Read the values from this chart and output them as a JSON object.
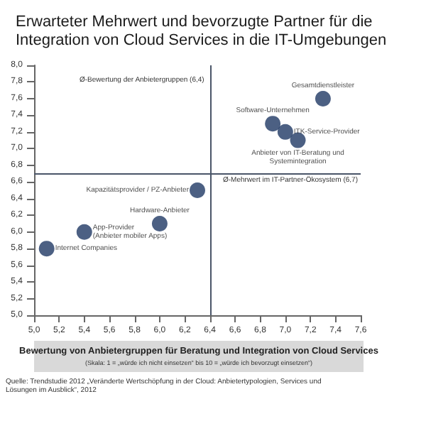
{
  "chart_data": {
    "type": "scatter",
    "title": "Erwarteter Mehrwert und bevorzugte Partner für die Integration von Cloud Services in die IT-Umgebungen",
    "xlabel": "Bewertung von Anbietergruppen für Beratung und Integration von Cloud Services",
    "subtitle": "(Skala: 1 = „würde ich nicht einsetzen“ bis 10 = „würde ich bevorzugt einsetzen“)",
    "x": [
      7.3,
      6.9,
      7.0,
      7.1,
      6.3,
      6.0,
      5.4,
      5.1
    ],
    "values": [
      7.6,
      7.3,
      7.2,
      7.1,
      6.5,
      6.1,
      6.0,
      5.8
    ],
    "color": "#1f3864",
    "marker": "circle",
    "xlim": [
      5.0,
      7.6
    ],
    "ylim": [
      5.0,
      8.0
    ],
    "xticks": [
      {
        "value": 5.0,
        "label": "5,0"
      },
      {
        "value": 5.2,
        "label": "5,2"
      },
      {
        "value": 5.4,
        "label": "5,4"
      },
      {
        "value": 5.6,
        "label": "5,6"
      },
      {
        "value": 5.8,
        "label": "5,8"
      },
      {
        "value": 6.0,
        "label": "6,0"
      },
      {
        "value": 6.2,
        "label": "6,2"
      },
      {
        "value": 6.4,
        "label": "6,4"
      },
      {
        "value": 6.6,
        "label": "6,6"
      },
      {
        "value": 6.8,
        "label": "6,8"
      },
      {
        "value": 7.0,
        "label": "7,0"
      },
      {
        "value": 7.2,
        "label": "7,2"
      },
      {
        "value": 7.4,
        "label": "7,4"
      },
      {
        "value": 7.6,
        "label": "7,6"
      }
    ],
    "yticks": [
      {
        "value": 5.0,
        "label": "5,0"
      },
      {
        "value": 5.2,
        "label": "5,2"
      },
      {
        "value": 5.4,
        "label": "5,4"
      },
      {
        "value": 5.6,
        "label": "5,6"
      },
      {
        "value": 5.8,
        "label": "5,8"
      },
      {
        "value": 6.0,
        "label": "6,0"
      },
      {
        "value": 6.2,
        "label": "6,2"
      },
      {
        "value": 6.4,
        "label": "6,4"
      },
      {
        "value": 6.6,
        "label": "6,6"
      },
      {
        "value": 6.8,
        "label": "6,8"
      },
      {
        "value": 7.0,
        "label": "7,0"
      },
      {
        "value": 7.2,
        "label": "7,2"
      },
      {
        "value": 7.4,
        "label": "7,4"
      },
      {
        "value": 7.6,
        "label": "7,6"
      },
      {
        "value": 7.8,
        "label": "7,8"
      },
      {
        "value": 8.0,
        "label": "8,0"
      }
    ],
    "grid": false,
    "ref_lines": [
      {
        "axis": "x",
        "value": 6.4,
        "label": "Ø-Bewertung der Anbietergruppen (6,4)",
        "color": "#4a5568"
      },
      {
        "axis": "y",
        "value": 6.7,
        "label": "Ø-Mehrwert im IT-Partner-Ökosystem (6,7)",
        "color": "#4a5568"
      }
    ],
    "annotations": [
      {
        "text": "Gesamtdienstleister",
        "x": 7.3,
        "y": 7.6
      },
      {
        "text": "Software-Unternehmen",
        "x": 6.9,
        "y": 7.3
      },
      {
        "text": "ITK-Service-Provider",
        "x": 7.0,
        "y": 7.2
      },
      {
        "text": "Anbieter von IT-Beratung und Systemintegration",
        "x": 7.1,
        "y": 7.1
      },
      {
        "text": "Kapazitätsprovider / PZ-Anbieter",
        "x": 6.3,
        "y": 6.5
      },
      {
        "text": "Hardware-Anbieter",
        "x": 6.0,
        "y": 6.1
      },
      {
        "text": "App-Provider (Anbieter mobiler Apps)",
        "x": 5.4,
        "y": 6.0
      },
      {
        "text": "Internet Companies",
        "x": 5.1,
        "y": 5.8
      },
      "Quelle: Trendstudie 2012 „Veränderte Wertschöpfung in der Cloud: Anbietertypologien, Services und Lösungen im Ausblick“, 2012"
    ]
  }
}
